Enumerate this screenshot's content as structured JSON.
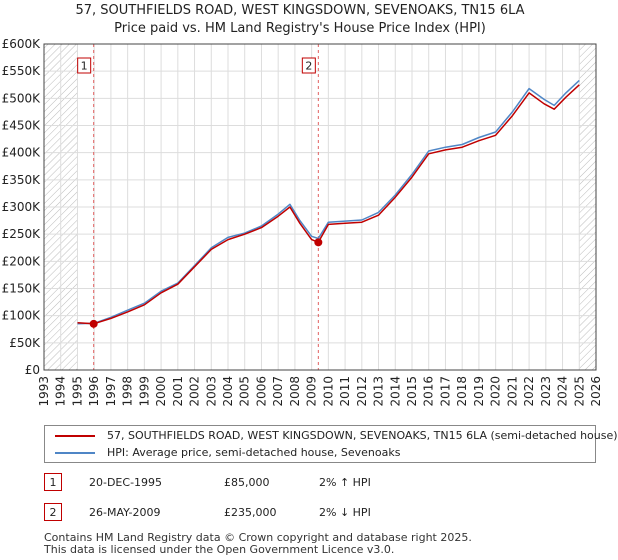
{
  "header": {
    "title_line1": "57, SOUTHFIELDS ROAD, WEST KINGSDOWN, SEVENOAKS, TN15 6LA",
    "title_line2": "Price paid vs. HM Land Registry's House Price Index (HPI)"
  },
  "chart_data": {
    "type": "line",
    "x_range": [
      1993,
      2026
    ],
    "ylim": [
      0,
      600000
    ],
    "x_ticks": [
      1993,
      1994,
      1995,
      1996,
      1997,
      1998,
      1999,
      2000,
      2001,
      2002,
      2003,
      2004,
      2005,
      2006,
      2007,
      2008,
      2009,
      2010,
      2011,
      2012,
      2013,
      2014,
      2015,
      2016,
      2017,
      2018,
      2019,
      2020,
      2021,
      2022,
      2023,
      2024,
      2025,
      2026
    ],
    "y_ticks": [
      0,
      50000,
      100000,
      150000,
      200000,
      250000,
      300000,
      350000,
      400000,
      450000,
      500000,
      550000,
      600000
    ],
    "y_tick_labels": [
      "£0",
      "£50K",
      "£100K",
      "£150K",
      "£200K",
      "£250K",
      "£300K",
      "£350K",
      "£400K",
      "£450K",
      "£500K",
      "£550K",
      "£600K"
    ],
    "hatch_regions": [
      [
        1993,
        1995.0
      ],
      [
        2025.0,
        2026
      ]
    ],
    "series": [
      {
        "name": "57, SOUTHFIELDS ROAD, WEST KINGSDOWN, SEVENOAKS, TN15 6LA (semi-detached house)",
        "color": "#c00000",
        "points": [
          [
            1995.0,
            87000
          ],
          [
            1995.97,
            85000
          ],
          [
            1997,
            95000
          ],
          [
            1998,
            107000
          ],
          [
            1999,
            120000
          ],
          [
            2000,
            142000
          ],
          [
            2001,
            158000
          ],
          [
            2002,
            190000
          ],
          [
            2003,
            222000
          ],
          [
            2004,
            240000
          ],
          [
            2005,
            250000
          ],
          [
            2006,
            262000
          ],
          [
            2007,
            283000
          ],
          [
            2007.7,
            300000
          ],
          [
            2008.3,
            270000
          ],
          [
            2009.0,
            240000
          ],
          [
            2009.4,
            235000
          ],
          [
            2010,
            268000
          ],
          [
            2011,
            270000
          ],
          [
            2012,
            272000
          ],
          [
            2013,
            285000
          ],
          [
            2014,
            318000
          ],
          [
            2015,
            355000
          ],
          [
            2016,
            398000
          ],
          [
            2017,
            405000
          ],
          [
            2018,
            410000
          ],
          [
            2019,
            422000
          ],
          [
            2020,
            432000
          ],
          [
            2021,
            468000
          ],
          [
            2022,
            510000
          ],
          [
            2022.9,
            490000
          ],
          [
            2023.5,
            480000
          ],
          [
            2024.2,
            502000
          ],
          [
            2025.0,
            525000
          ]
        ]
      },
      {
        "name": "HPI: Average price, semi-detached house, Sevenoaks",
        "color": "#4f86c6",
        "points": [
          [
            1995.0,
            85000
          ],
          [
            1996,
            86000
          ],
          [
            1997,
            97000
          ],
          [
            1998,
            110000
          ],
          [
            1999,
            123000
          ],
          [
            2000,
            145000
          ],
          [
            2001,
            160000
          ],
          [
            2002,
            192000
          ],
          [
            2003,
            225000
          ],
          [
            2004,
            244000
          ],
          [
            2005,
            252000
          ],
          [
            2006,
            265000
          ],
          [
            2007,
            287000
          ],
          [
            2007.7,
            305000
          ],
          [
            2008.3,
            275000
          ],
          [
            2009.0,
            246000
          ],
          [
            2009.4,
            242000
          ],
          [
            2010,
            272000
          ],
          [
            2011,
            274000
          ],
          [
            2012,
            276000
          ],
          [
            2013,
            290000
          ],
          [
            2014,
            322000
          ],
          [
            2015,
            360000
          ],
          [
            2016,
            403000
          ],
          [
            2017,
            410000
          ],
          [
            2018,
            415000
          ],
          [
            2019,
            428000
          ],
          [
            2020,
            438000
          ],
          [
            2021,
            475000
          ],
          [
            2022,
            518000
          ],
          [
            2022.9,
            498000
          ],
          [
            2023.5,
            487000
          ],
          [
            2024.2,
            510000
          ],
          [
            2025.0,
            533000
          ]
        ]
      }
    ],
    "markers": [
      {
        "label": "1",
        "x": 1995.97,
        "y": 85000
      },
      {
        "label": "2",
        "x": 2009.4,
        "y": 235000
      }
    ]
  },
  "legend": {
    "red_label": "57, SOUTHFIELDS ROAD, WEST KINGSDOWN, SEVENOAKS, TN15 6LA (semi-detached house)",
    "blue_label": "HPI: Average price, semi-detached house, Sevenoaks"
  },
  "transactions": [
    {
      "num": "1",
      "date": "20-DEC-1995",
      "price": "£85,000",
      "hpi": "2% ↑ HPI"
    },
    {
      "num": "2",
      "date": "26-MAY-2009",
      "price": "£235,000",
      "hpi": "2% ↓ HPI"
    }
  ],
  "footer": {
    "line1": "Contains HM Land Registry data © Crown copyright and database right 2025.",
    "line2": "This data is licensed under the Open Government Licence v3.0."
  }
}
